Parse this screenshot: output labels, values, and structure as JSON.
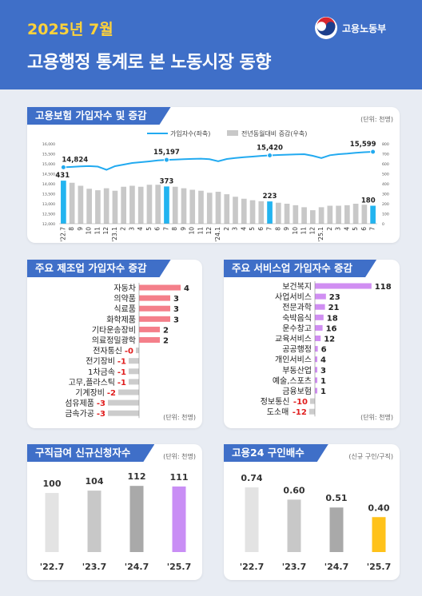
{
  "header": {
    "period": "2025년 7월",
    "title": "고용행정 통계로 본 노동시장 동향",
    "org": "고용노동부"
  },
  "colors": {
    "header_bg": "#3f6fc8",
    "accent_yellow": "#ffd23a",
    "line_blue": "#22aaf0",
    "bar_gray": "#c8c8c8",
    "bar_highlight": "#22b4f0",
    "manu_bar": "#f47f8a",
    "serv_bar": "#d08ef2",
    "negative_bar": "#cccccc",
    "negative_text": "#e01e1e"
  },
  "sections": {
    "insured": {
      "title": "고용보험 가입자수 및 증감",
      "unit": "(단위: 천명)",
      "legend_line": "가입자수(좌축)",
      "legend_bar": "전년동월대비 증감(우축)"
    },
    "manufacturing": {
      "title": "주요 제조업 가입자수 증감",
      "unit": "(단위: 천명)"
    },
    "services": {
      "title": "주요 서비스업 가입자수 증감",
      "unit": "(단위: 천명)"
    },
    "jobseeker": {
      "title": "구직급여 신규신청자수",
      "unit": "(단위: 천명)"
    },
    "jobsratio": {
      "title": "고용24 구인배수",
      "unit": "(신규 구인/구직)"
    }
  },
  "chart_data": [
    {
      "type": "line",
      "x": [
        "'22.7",
        "8",
        "9",
        "10",
        "11",
        "12",
        "'23.1",
        "2",
        "3",
        "4",
        "5",
        "6",
        "7",
        "8",
        "9",
        "10",
        "11",
        "12",
        "'24.1",
        "2",
        "3",
        "4",
        "5",
        "6",
        "7",
        "8",
        "9",
        "10",
        "11",
        "12",
        "'25.1",
        "2",
        "3",
        "4",
        "5",
        "6",
        "7"
      ],
      "series": [
        {
          "name": "가입자수(좌축)",
          "type": "line",
          "axis": "left",
          "values": [
            14824,
            14845,
            14870,
            14885,
            14860,
            14700,
            14880,
            14960,
            15040,
            15080,
            15120,
            15170,
            15197,
            15210,
            15230,
            15245,
            15255,
            15230,
            15130,
            15240,
            15290,
            15330,
            15360,
            15395,
            15420,
            15440,
            15455,
            15470,
            15480,
            15400,
            15290,
            15430,
            15480,
            15510,
            15550,
            15580,
            15599
          ],
          "labels": [
            {
              "index": 0,
              "text": "14,824"
            },
            {
              "index": 12,
              "text": "15,197"
            },
            {
              "index": 24,
              "text": "15,420"
            },
            {
              "index": 36,
              "text": "15,599"
            }
          ]
        },
        {
          "name": "전년동월대비 증감(우축)",
          "type": "bar",
          "axis": "right",
          "values": [
            431,
            410,
            380,
            350,
            335,
            355,
            330,
            370,
            380,
            370,
            390,
            390,
            373,
            370,
            355,
            340,
            330,
            310,
            320,
            295,
            270,
            250,
            235,
            225,
            223,
            210,
            200,
            185,
            165,
            135,
            165,
            180,
            180,
            185,
            200,
            190,
            180
          ],
          "labels": [
            {
              "index": 0,
              "text": "431"
            },
            {
              "index": 12,
              "text": "373"
            },
            {
              "index": 24,
              "text": "223"
            },
            {
              "index": 36,
              "text": "180"
            }
          ]
        }
      ],
      "y_left": {
        "ticks": [
          "12,000",
          "12,500",
          "13,000",
          "13,500",
          "14,000",
          "14,500",
          "15,000",
          "15,500",
          "16,000"
        ],
        "range": [
          12000,
          16000
        ]
      },
      "y_right": {
        "ticks": [
          "0",
          "100",
          "200",
          "300",
          "400",
          "500",
          "600",
          "700",
          "800"
        ],
        "range": [
          0,
          800
        ]
      }
    },
    {
      "type": "bar",
      "orientation": "horizontal",
      "categories": [
        "자동차",
        "의약품",
        "식료품",
        "화학제품",
        "기타운송장비",
        "의료정밀광학",
        "전자통신",
        "전기장비",
        "1차금속",
        "고무,플라스틱",
        "기계장비",
        "섬유제품",
        "금속가공"
      ],
      "values": [
        4,
        3,
        3,
        3,
        2,
        2,
        -0.2,
        -1,
        -1,
        -1,
        -2,
        -3,
        -3
      ],
      "value_labels": [
        "4",
        "3",
        "3",
        "3",
        "2",
        "2",
        "-0",
        "-1",
        "-1",
        "-1",
        "-2",
        "-3",
        "-3"
      ]
    },
    {
      "type": "bar",
      "orientation": "horizontal",
      "categories": [
        "보건복지",
        "사업서비스",
        "전문과학",
        "숙박음식",
        "운수창고",
        "교육서비스",
        "공공행정",
        "개인서비스",
        "부동산업",
        "예술,스포츠",
        "금융보험",
        "정보통신",
        "도소매"
      ],
      "values": [
        118,
        23,
        21,
        18,
        16,
        12,
        6,
        4,
        3,
        1,
        1,
        -10,
        -12
      ],
      "value_labels": [
        "118",
        "23",
        "21",
        "18",
        "16",
        "12",
        "6",
        "4",
        "3",
        "1",
        "1",
        "-10",
        "-12"
      ]
    },
    {
      "type": "bar",
      "categories": [
        "'22.7",
        "'23.7",
        "'24.7",
        "'25.7"
      ],
      "values": [
        100,
        104,
        112,
        111
      ],
      "value_labels": [
        "100",
        "104",
        "112",
        "111"
      ]
    },
    {
      "type": "bar",
      "categories": [
        "'22.7",
        "'23.7",
        "'24.7",
        "'25.7"
      ],
      "values": [
        0.74,
        0.6,
        0.51,
        0.4
      ],
      "value_labels": [
        "0.74",
        "0.60",
        "0.51",
        "0.40"
      ]
    }
  ]
}
